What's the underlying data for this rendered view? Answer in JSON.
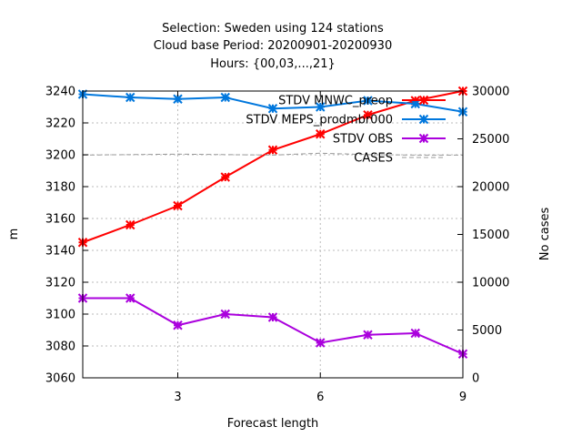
{
  "chart_data": {
    "type": "line",
    "title_lines": [
      "Selection: Sweden using   124 stations",
      "Cloud base   Period: 20200901-20200930",
      "Hours: {00,03,...,21}"
    ],
    "xlabel": "Forecast length",
    "ylabel": "m",
    "y2label": "No cases",
    "x": [
      1,
      2,
      3,
      4,
      5,
      6,
      7,
      8,
      9
    ],
    "xlim": [
      1,
      9
    ],
    "xticks": [
      3,
      6,
      9
    ],
    "ylim": [
      3060,
      3240
    ],
    "yticks": [
      3060,
      3080,
      3100,
      3120,
      3140,
      3160,
      3180,
      3200,
      3220,
      3240
    ],
    "y2lim": [
      0,
      30000
    ],
    "y2ticks": [
      0,
      5000,
      10000,
      15000,
      20000,
      25000,
      30000
    ],
    "grid": true,
    "legend_position": "top-right",
    "series": [
      {
        "name": "STDV MNWC_preop",
        "axis": "y1",
        "color": "#ff0000",
        "style": "solid",
        "values": [
          3145,
          3156,
          3168,
          3186,
          3203,
          3213,
          3225,
          3234,
          3240
        ]
      },
      {
        "name": "STDV MEPS_prodmbr000",
        "axis": "y1",
        "color": "#0077dd",
        "style": "solid",
        "values": [
          3238,
          3236,
          3235,
          3236,
          3229,
          3230,
          3234,
          3232,
          3227
        ]
      },
      {
        "name": "STDV OBS",
        "axis": "y1",
        "color": "#aa00dd",
        "style": "solid",
        "values": [
          3110,
          3110,
          3093,
          3100,
          3098,
          3082,
          3087,
          3088,
          3075
        ]
      },
      {
        "name": "CASES",
        "axis": "y2",
        "color": "#999999",
        "style": "dashed",
        "values": [
          23300,
          23350,
          23400,
          23350,
          23300,
          23500,
          23350,
          23300,
          23300
        ]
      }
    ]
  }
}
